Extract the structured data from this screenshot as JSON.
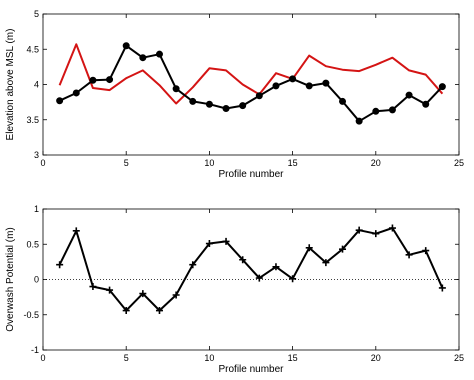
{
  "chart_data": [
    {
      "type": "line",
      "xlabel": "Profile number",
      "ylabel": "Elevation above MSL (m)",
      "xlim": [
        0,
        25
      ],
      "ylim": [
        3,
        5
      ],
      "xticks": [
        0,
        5,
        10,
        15,
        20,
        25
      ],
      "yticks": [
        3,
        3.5,
        4,
        4.5,
        5
      ],
      "grid": false,
      "x": [
        1,
        2,
        3,
        4,
        5,
        6,
        7,
        8,
        9,
        10,
        11,
        12,
        13,
        14,
        15,
        16,
        17,
        18,
        19,
        20,
        21,
        22,
        23,
        24
      ],
      "series": [
        {
          "color": "#d41414",
          "marker": "none",
          "values": [
            3.99,
            4.57,
            3.95,
            3.92,
            4.09,
            4.2,
            3.99,
            3.73,
            3.96,
            4.23,
            4.2,
            4.0,
            3.86,
            4.16,
            4.08,
            4.41,
            4.26,
            4.21,
            4.19,
            4.28,
            4.38,
            4.2,
            4.14,
            3.87
          ]
        },
        {
          "color": "#000000",
          "marker": "circle",
          "values": [
            3.77,
            3.88,
            4.06,
            4.07,
            4.55,
            4.38,
            4.43,
            3.94,
            3.76,
            3.72,
            3.66,
            3.7,
            3.84,
            3.98,
            4.08,
            3.98,
            4.02,
            3.76,
            3.48,
            3.62,
            3.64,
            3.85,
            3.72,
            3.97
          ]
        }
      ]
    },
    {
      "type": "line",
      "xlabel": "Profile number",
      "ylabel": "Overwash Potential (m)",
      "xlim": [
        0,
        25
      ],
      "ylim": [
        -1,
        1
      ],
      "xticks": [
        0,
        5,
        10,
        15,
        20,
        25
      ],
      "yticks": [
        -1,
        -0.5,
        0,
        0.5,
        1
      ],
      "grid": false,
      "reference_line": 0,
      "x": [
        1,
        2,
        3,
        4,
        5,
        6,
        7,
        8,
        9,
        10,
        11,
        12,
        13,
        14,
        15,
        16,
        17,
        18,
        19,
        20,
        21,
        22,
        23,
        24
      ],
      "series": [
        {
          "color": "#000000",
          "marker": "plus",
          "values": [
            0.21,
            0.69,
            -0.1,
            -0.15,
            -0.44,
            -0.2,
            -0.44,
            -0.22,
            0.21,
            0.51,
            0.54,
            0.28,
            0.02,
            0.18,
            0.01,
            0.45,
            0.24,
            0.43,
            0.7,
            0.65,
            0.73,
            0.35,
            0.41,
            -0.12
          ]
        }
      ]
    }
  ]
}
